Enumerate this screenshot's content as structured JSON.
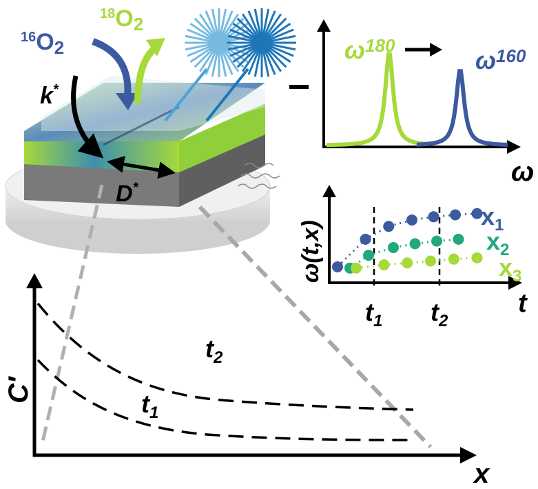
{
  "colors": {
    "green": "#a6d93a",
    "navy": "#3c5aa0",
    "teal": "#22a87d",
    "sky": "#4aa3d8",
    "black": "#000000",
    "gray": "#9a9a9a"
  },
  "labels": {
    "o16_sup": "16",
    "o16_main": "O",
    "o16_sub": "2",
    "o18_sup": "18",
    "o18_main": "O",
    "o18_sub": "2",
    "k_main": "k",
    "k_sup": "*",
    "d_main": "D",
    "d_sup": "*",
    "omega180_main": "ω",
    "omega180_sub": "180",
    "omega160_main": "ω",
    "omega160_sub": "160",
    "omega_axis": "ω",
    "wtx_axis": "ω(t,x)",
    "t_axis": "t",
    "t1_main": "t",
    "t1_sub": "1",
    "t2_main": "t",
    "t2_sub": "2",
    "x1_main": "x",
    "x1_sub": "1",
    "x2_main": "x",
    "x2_sub": "2",
    "x3_main": "x",
    "x3_sub": "3",
    "c_axis": "C′",
    "x_axis": "x",
    "curve_t2_main": "t",
    "curve_t2_sub": "2",
    "curve_t1_main": "t",
    "curve_t1_sub": "1"
  },
  "spectrum_plot": {
    "peaks": [
      {
        "label": "ω180",
        "color": "green"
      },
      {
        "label": "ω160",
        "color": "navy"
      }
    ],
    "shift_arrow": "right"
  },
  "time_plot": {
    "series": [
      {
        "name": "x1",
        "color": "navy",
        "points": [
          [
            0.0,
            0.12
          ],
          [
            0.18,
            0.55
          ],
          [
            0.33,
            0.75
          ],
          [
            0.48,
            0.85
          ],
          [
            0.62,
            0.9
          ],
          [
            0.76,
            0.93
          ],
          [
            0.9,
            0.95
          ]
        ]
      },
      {
        "name": "x2",
        "color": "teal",
        "points": [
          [
            0.08,
            0.1
          ],
          [
            0.2,
            0.3
          ],
          [
            0.36,
            0.42
          ],
          [
            0.5,
            0.48
          ],
          [
            0.64,
            0.52
          ],
          [
            0.78,
            0.55
          ]
        ]
      },
      {
        "name": "x3",
        "color": "green",
        "points": [
          [
            0.12,
            0.1
          ],
          [
            0.3,
            0.15
          ],
          [
            0.45,
            0.18
          ],
          [
            0.6,
            0.21
          ],
          [
            0.75,
            0.24
          ],
          [
            0.9,
            0.26
          ]
        ]
      }
    ]
  }
}
